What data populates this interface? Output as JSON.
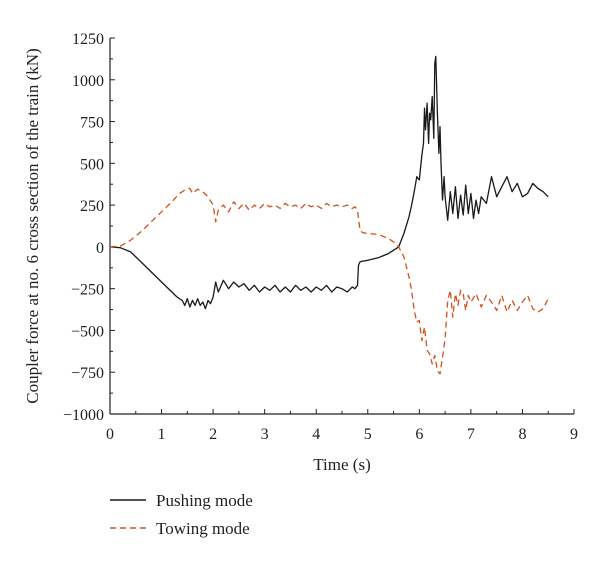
{
  "chart_data": {
    "type": "line",
    "xlabel": "Time (s)",
    "ylabel": "Coupler force at no. 6 cross section of the train (kN)",
    "xlim": [
      0,
      9
    ],
    "ylim": [
      -1000,
      1250
    ],
    "xticks": [
      0,
      1,
      2,
      3,
      4,
      5,
      6,
      7,
      8,
      9
    ],
    "yticks": [
      -1000,
      -750,
      -500,
      -250,
      0,
      250,
      500,
      750,
      1000,
      1250
    ],
    "grid": false,
    "legend_position": "bottom-left",
    "series": [
      {
        "name": "Pushing mode",
        "color": "#1a1a1a",
        "style": "solid",
        "x": [
          0,
          0.2,
          0.4,
          0.5,
          0.7,
          0.9,
          1.1,
          1.3,
          1.4,
          1.45,
          1.5,
          1.55,
          1.6,
          1.65,
          1.7,
          1.75,
          1.8,
          1.85,
          1.9,
          1.95,
          2.0,
          2.05,
          2.1,
          2.2,
          2.3,
          2.4,
          2.5,
          2.6,
          2.7,
          2.8,
          2.9,
          3.0,
          3.1,
          3.2,
          3.3,
          3.4,
          3.5,
          3.6,
          3.7,
          3.8,
          3.9,
          4.0,
          4.1,
          4.2,
          4.3,
          4.4,
          4.5,
          4.6,
          4.7,
          4.75,
          4.8,
          4.82,
          4.85,
          4.9,
          5.0,
          5.2,
          5.4,
          5.5,
          5.6,
          5.7,
          5.8,
          5.85,
          5.9,
          5.95,
          6.0,
          6.05,
          6.08,
          6.1,
          6.12,
          6.15,
          6.18,
          6.2,
          6.22,
          6.25,
          6.28,
          6.3,
          6.32,
          6.35,
          6.38,
          6.4,
          6.42,
          6.45,
          6.48,
          6.5,
          6.55,
          6.6,
          6.65,
          6.7,
          6.75,
          6.8,
          6.85,
          6.9,
          6.95,
          7.0,
          7.05,
          7.1,
          7.15,
          7.2,
          7.3,
          7.4,
          7.5,
          7.6,
          7.7,
          7.8,
          7.9,
          8.0,
          8.1,
          8.2,
          8.3,
          8.4,
          8.5
        ],
        "y": [
          0,
          -5,
          -30,
          -60,
          -120,
          -180,
          -240,
          -300,
          -320,
          -350,
          -310,
          -360,
          -320,
          -350,
          -310,
          -350,
          -330,
          -370,
          -320,
          -340,
          -300,
          -210,
          -270,
          -200,
          -250,
          -210,
          -240,
          -220,
          -260,
          -230,
          -270,
          -240,
          -260,
          -230,
          -270,
          -240,
          -270,
          -230,
          -260,
          -240,
          -270,
          -240,
          -260,
          -230,
          -270,
          -240,
          -250,
          -270,
          -240,
          -250,
          -230,
          -110,
          -90,
          -85,
          -80,
          -65,
          -40,
          -20,
          0,
          80,
          180,
          250,
          330,
          420,
          400,
          550,
          620,
          830,
          700,
          860,
          620,
          800,
          760,
          900,
          650,
          1100,
          1140,
          800,
          560,
          720,
          500,
          280,
          420,
          300,
          160,
          330,
          200,
          360,
          170,
          310,
          190,
          370,
          200,
          320,
          170,
          280,
          200,
          300,
          260,
          420,
          300,
          360,
          420,
          330,
          380,
          300,
          320,
          380,
          350,
          330,
          300
        ]
      },
      {
        "name": "Towing mode",
        "color": "#d2501e",
        "style": "dashed",
        "x": [
          0,
          0.2,
          0.4,
          0.6,
          0.8,
          1.0,
          1.2,
          1.35,
          1.45,
          1.55,
          1.6,
          1.7,
          1.8,
          1.9,
          2.0,
          2.05,
          2.1,
          2.2,
          2.3,
          2.4,
          2.5,
          2.6,
          2.7,
          2.8,
          2.9,
          3.0,
          3.1,
          3.2,
          3.3,
          3.4,
          3.5,
          3.6,
          3.7,
          3.8,
          3.9,
          4.0,
          4.1,
          4.2,
          4.3,
          4.4,
          4.5,
          4.6,
          4.7,
          4.75,
          4.8,
          4.85,
          4.9,
          5.0,
          5.2,
          5.4,
          5.5,
          5.6,
          5.7,
          5.8,
          5.85,
          5.9,
          5.95,
          6.0,
          6.05,
          6.1,
          6.15,
          6.2,
          6.25,
          6.3,
          6.35,
          6.4,
          6.45,
          6.5,
          6.55,
          6.6,
          6.65,
          6.7,
          6.75,
          6.8,
          6.85,
          6.9,
          6.95,
          7.0,
          7.1,
          7.2,
          7.3,
          7.4,
          7.5,
          7.6,
          7.7,
          7.8,
          7.9,
          8.0,
          8.1,
          8.2,
          8.3,
          8.4,
          8.5
        ],
        "y": [
          0,
          5,
          40,
          90,
          150,
          210,
          270,
          320,
          340,
          350,
          320,
          345,
          330,
          300,
          250,
          150,
          220,
          250,
          210,
          270,
          230,
          260,
          220,
          250,
          230,
          260,
          240,
          250,
          230,
          260,
          240,
          250,
          230,
          260,
          240,
          250,
          230,
          260,
          240,
          250,
          240,
          250,
          230,
          240,
          220,
          100,
          85,
          80,
          75,
          50,
          30,
          0,
          -60,
          -180,
          -260,
          -380,
          -450,
          -440,
          -560,
          -480,
          -620,
          -640,
          -700,
          -650,
          -740,
          -760,
          -660,
          -550,
          -320,
          -260,
          -420,
          -280,
          -350,
          -260,
          -280,
          -380,
          -290,
          -330,
          -280,
          -360,
          -290,
          -330,
          -380,
          -290,
          -390,
          -320,
          -380,
          -330,
          -290,
          -370,
          -390,
          -370,
          -310
        ]
      }
    ]
  }
}
